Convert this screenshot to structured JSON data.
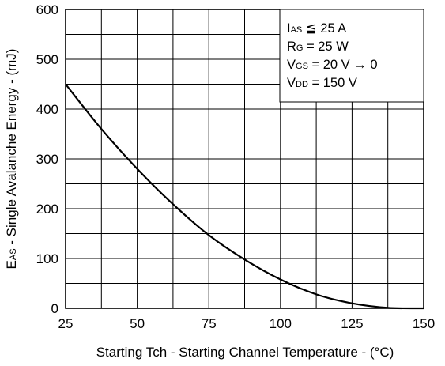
{
  "chart_data": {
    "type": "line",
    "title": "",
    "xlabel": "Starting Tch - Starting Channel Temperature - (°C)",
    "ylabel": {
      "main": "E",
      "sub": "AS",
      "rest": " - Single Avalanche Energy - (mJ)"
    },
    "xlim": [
      25,
      150
    ],
    "ylim": [
      0,
      600
    ],
    "x_ticks": [
      25,
      50,
      75,
      100,
      125,
      150
    ],
    "y_ticks": [
      0,
      100,
      200,
      300,
      400,
      500,
      600
    ],
    "grid": true,
    "x_minor_grid_step": 12.5,
    "y_minor_grid_step": 50,
    "series": [
      {
        "x": [
          25,
          37.5,
          50,
          62.5,
          75,
          87.5,
          100,
          112.5,
          125,
          137.5,
          150
        ],
        "y": [
          450,
          360,
          280,
          209,
          147,
          98,
          58,
          28,
          10,
          1,
          0
        ]
      }
    ],
    "legend_position": "top-right",
    "conditions": [
      {
        "main": "I",
        "sub": "AS",
        "rest": " ≦ 25 A"
      },
      {
        "main": "R",
        "sub": "G",
        "rest": " = 25 W"
      },
      {
        "main": "V",
        "sub": "GS",
        "rest": " = 20 V → 0"
      },
      {
        "main": "V",
        "sub": "DD",
        "rest": " = 150 V"
      }
    ]
  }
}
